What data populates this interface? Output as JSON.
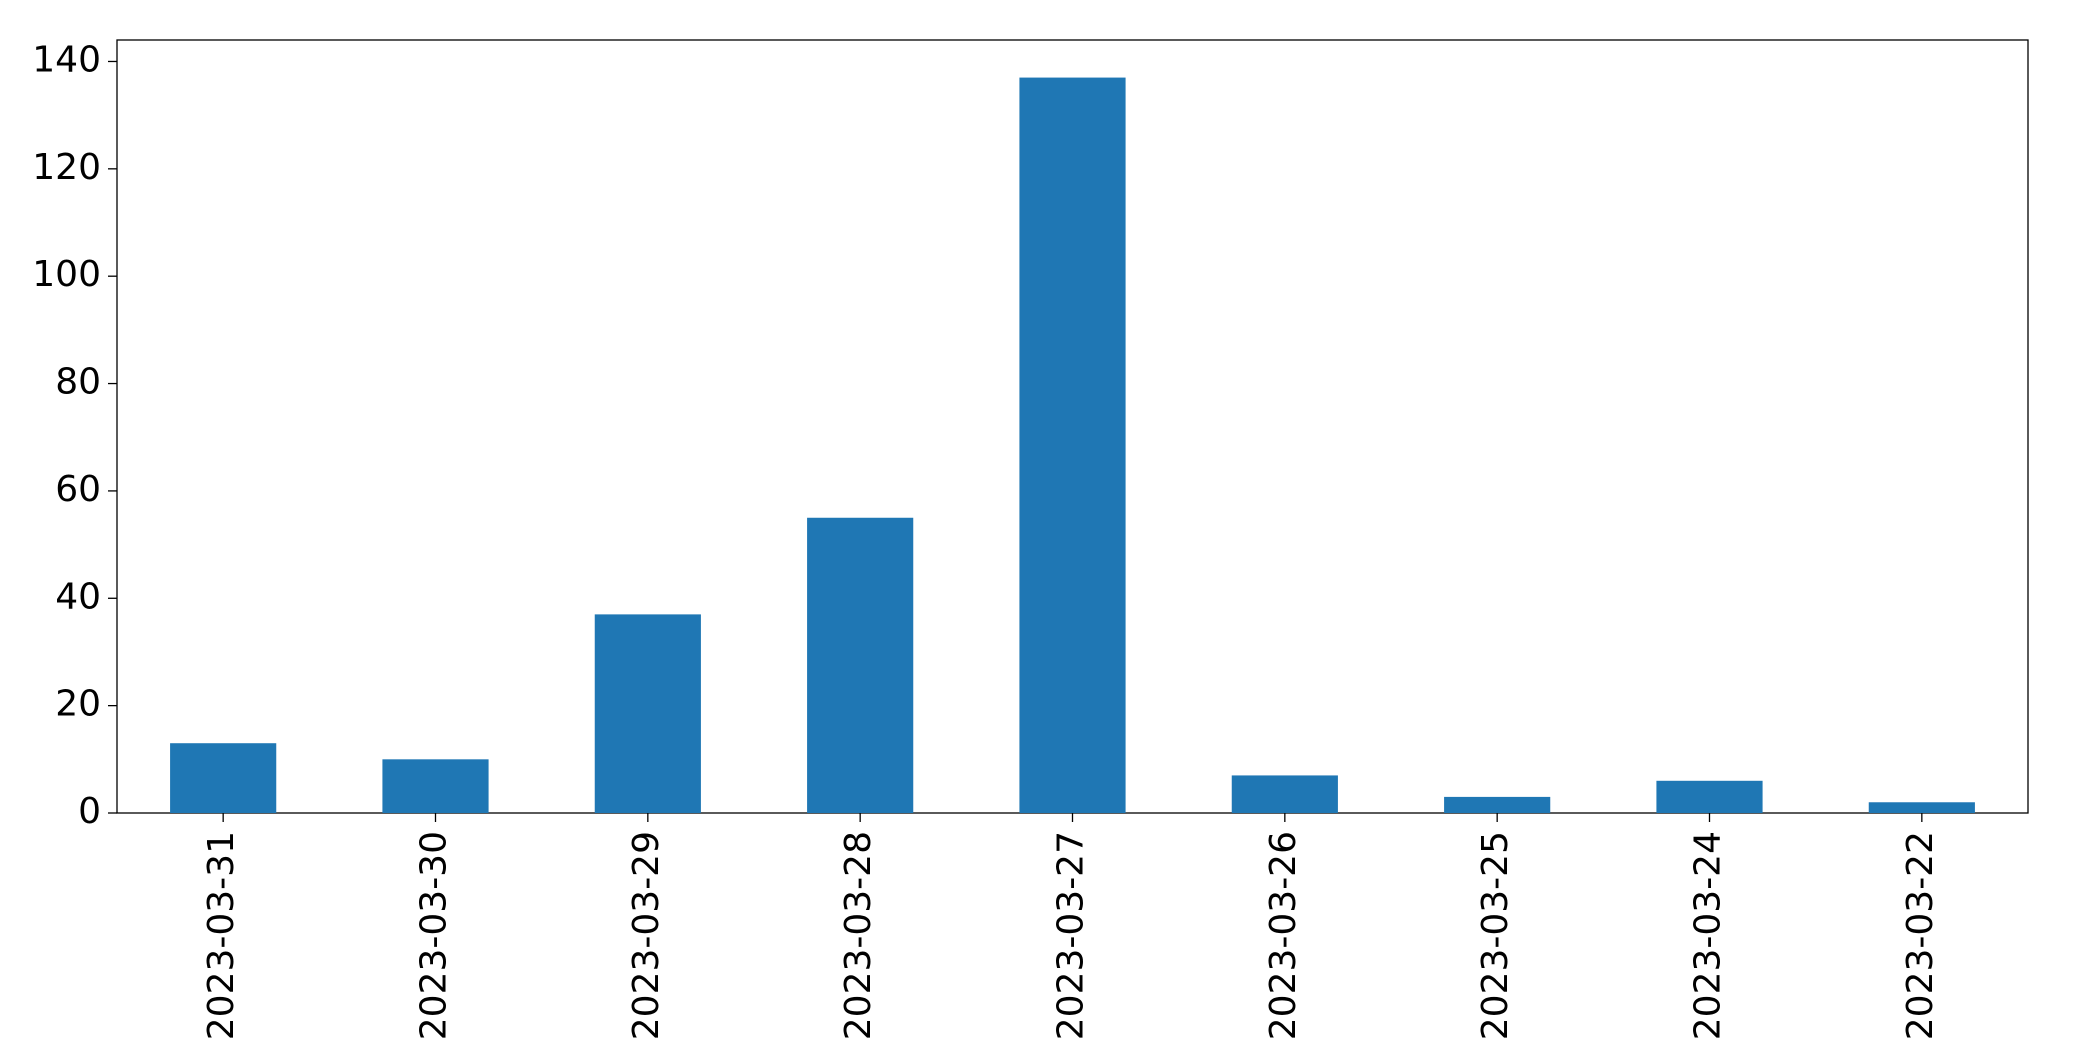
{
  "chart_data": {
    "type": "bar",
    "categories": [
      "2023-03-31",
      "2023-03-30",
      "2023-03-29",
      "2023-03-28",
      "2023-03-27",
      "2023-03-26",
      "2023-03-25",
      "2023-03-24",
      "2023-03-22"
    ],
    "values": [
      13,
      10,
      37,
      55,
      137,
      7,
      3,
      6,
      2
    ],
    "color": "#1f77b4",
    "ylim": [
      0,
      144
    ],
    "yticks": [
      0,
      20,
      40,
      60,
      80,
      100,
      120,
      140
    ],
    "grid": false
  }
}
